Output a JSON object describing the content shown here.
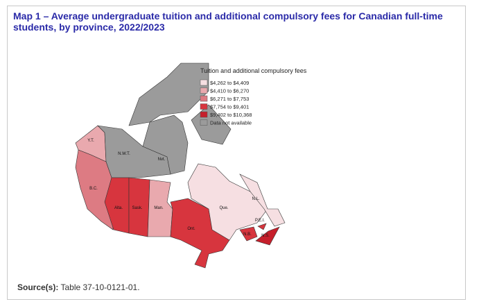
{
  "title": "Map 1 –  Average undergraduate tuition and additional compulsory fees for Canadian full-time students, by province, 2022/2023",
  "legend": {
    "title": "Tuition and additional compulsory fees",
    "items": [
      {
        "label": "$4,262 to $4,409",
        "color": "#f6dfe2"
      },
      {
        "label": "$4,410 to $6,270",
        "color": "#e9a9ae"
      },
      {
        "label": "$6,271 to $7,753",
        "color": "#dd7b83"
      },
      {
        "label": "$7,754 to $9,401",
        "color": "#d7353e"
      },
      {
        "label": "$9,402 to $10,368",
        "color": "#c61f2b"
      },
      {
        "label": "Data not available",
        "color": "#9b9b9b"
      }
    ]
  },
  "regions": [
    {
      "label": "Y.T.",
      "color": "#e9a9ae"
    },
    {
      "label": "N.W.T.",
      "color": "#9b9b9b"
    },
    {
      "label": "Nvt.",
      "color": "#9b9b9b"
    },
    {
      "label": "B.C.",
      "color": "#dd7b83"
    },
    {
      "label": "Alta.",
      "color": "#d7353e"
    },
    {
      "label": "Sask.",
      "color": "#d7353e"
    },
    {
      "label": "Man.",
      "color": "#e9a9ae"
    },
    {
      "label": "Ont.",
      "color": "#d7353e"
    },
    {
      "label": "Que.",
      "color": "#f6dfe2"
    },
    {
      "label": "N.L.",
      "color": "#f6dfe2"
    },
    {
      "label": "N.B.",
      "color": "#d7353e"
    },
    {
      "label": "N.S.",
      "color": "#c61f2b"
    },
    {
      "label": "P.E.I.",
      "color": "#d7353e"
    }
  ],
  "source": {
    "label": "Source(s):",
    "text": "Table 37-10-0121-01."
  }
}
